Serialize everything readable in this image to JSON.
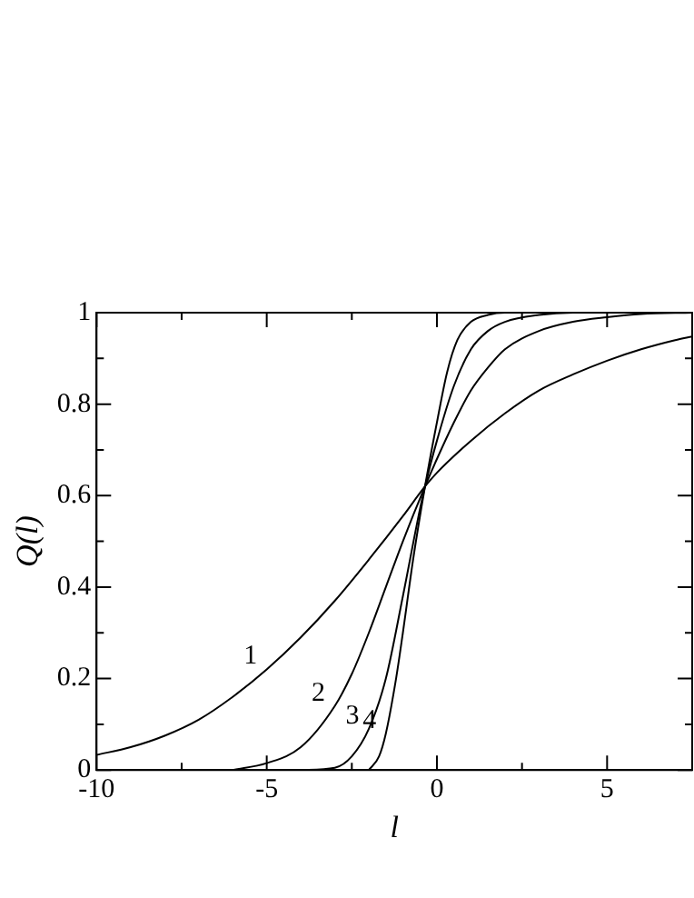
{
  "chart_data": {
    "type": "line",
    "xlabel": "l",
    "ylabel": "Q(l)",
    "xlim": [
      -10,
      7.5
    ],
    "ylim": [
      0,
      1
    ],
    "xticks": [
      -10,
      {
        "value": -7.5,
        "label": null
      },
      -5,
      {
        "value": -2.5,
        "label": null
      },
      0,
      {
        "value": 2.5,
        "label": null
      },
      5
    ],
    "yticks": [
      0,
      {
        "value": 0.1,
        "label": null
      },
      0.2,
      {
        "value": 0.3,
        "label": null
      },
      0.4,
      {
        "value": 0.5,
        "label": null
      },
      0.6,
      {
        "value": 0.7,
        "label": null
      },
      0.8,
      {
        "value": 0.9,
        "label": null
      },
      1
    ],
    "grid": false,
    "legend": false,
    "marker": "none",
    "line_style": "solid",
    "series": [
      {
        "color": "#000000",
        "x": [
          -10,
          -9,
          -8,
          -7,
          -6,
          -5,
          -4,
          -3,
          -2,
          -1,
          -0.35,
          0,
          1,
          2,
          3,
          4,
          5,
          6,
          7,
          7.5
        ],
        "values": [
          0.033,
          0.05,
          0.075,
          0.11,
          0.16,
          0.22,
          0.29,
          0.37,
          0.46,
          0.555,
          0.62,
          0.65,
          0.72,
          0.78,
          0.83,
          0.865,
          0.895,
          0.92,
          0.94,
          0.948
        ]
      },
      {
        "color": "#000000",
        "x": [
          -6,
          -5,
          -4,
          -3,
          -2.5,
          -2,
          -1.5,
          -1,
          -0.35,
          0,
          0.5,
          1,
          1.5,
          2,
          3,
          4,
          5,
          6,
          7.5
        ],
        "values": [
          0,
          0.015,
          0.05,
          0.14,
          0.21,
          0.3,
          0.4,
          0.5,
          0.62,
          0.68,
          0.76,
          0.83,
          0.88,
          0.92,
          0.96,
          0.98,
          0.99,
          0.997,
          1
        ]
      },
      {
        "color": "#000000",
        "x": [
          -4,
          -3,
          -2.5,
          -2,
          -1.5,
          -1,
          -0.5,
          -0.35,
          0,
          0.5,
          1,
          1.5,
          2,
          3,
          4,
          7.5
        ],
        "values": [
          0,
          0.005,
          0.03,
          0.09,
          0.2,
          0.38,
          0.57,
          0.62,
          0.72,
          0.84,
          0.92,
          0.96,
          0.98,
          0.995,
          1,
          1
        ]
      },
      {
        "color": "#000000",
        "x": [
          -2,
          -1.7,
          -1.5,
          -1.2,
          -1,
          -0.7,
          -0.35,
          0,
          0.3,
          0.6,
          1,
          1.5,
          2,
          7.5
        ],
        "values": [
          0,
          0.03,
          0.08,
          0.2,
          0.3,
          0.46,
          0.62,
          0.76,
          0.87,
          0.94,
          0.98,
          0.995,
          1,
          1
        ]
      }
    ],
    "annotations": [
      {
        "text": "1",
        "x": -5,
        "y": 0.22
      },
      {
        "text": "2",
        "x": -3,
        "y": 0.14
      },
      {
        "text": "3",
        "x": -2,
        "y": 0.09
      },
      {
        "text": "4",
        "x": -1.5,
        "y": 0.08
      }
    ]
  }
}
